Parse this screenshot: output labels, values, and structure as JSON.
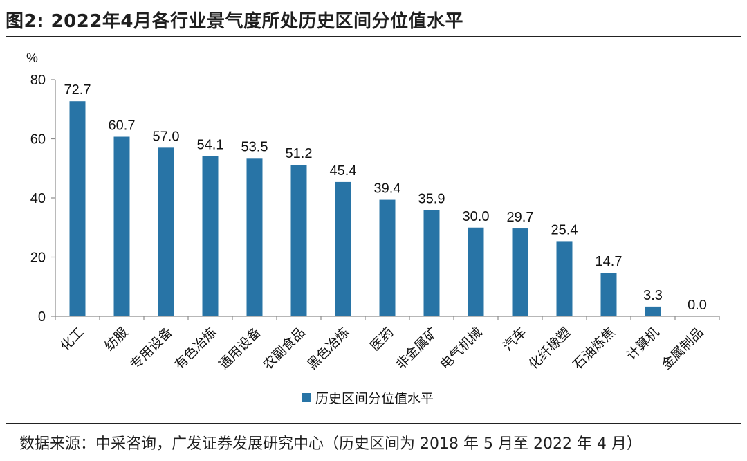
{
  "title": "图2:  2022年4月各行业景气度所处历史区间分位值水平",
  "source": "数据来源：中采咨询，广发证券发展研究中心（历史区间为 2018 年 5 月至 2022 年 4 月）",
  "colors": {
    "bar": "#2874a6",
    "axis": "#8c8c8c"
  },
  "chart_data": {
    "type": "bar",
    "title": "",
    "xlabel": "",
    "ylabel": "%",
    "ylim": [
      0,
      80
    ],
    "yticks": [
      "0",
      "20",
      "40",
      "60",
      "80"
    ],
    "grid": false,
    "legend_position": "bottom",
    "categories": [
      "化工",
      "纺服",
      "专用设备",
      "有色冶炼",
      "通用设备",
      "农副食品",
      "黑色冶炼",
      "医药",
      "非金属矿",
      "电气机械",
      "汽车",
      "化纤橡塑",
      "石油炼焦",
      "计算机",
      "金属制品"
    ],
    "series": [
      {
        "name": "历史区间分位值水平",
        "values": [
          72.7,
          60.7,
          57.0,
          54.1,
          53.5,
          51.2,
          45.4,
          39.4,
          35.9,
          30.0,
          29.7,
          25.4,
          14.7,
          3.3,
          0.0
        ],
        "labels": [
          "72.7",
          "60.7",
          "57.0",
          "54.1",
          "53.5",
          "51.2",
          "45.4",
          "39.4",
          "35.9",
          "30.0",
          "29.7",
          "25.4",
          "14.7",
          "3.3",
          "0.0"
        ]
      }
    ]
  }
}
